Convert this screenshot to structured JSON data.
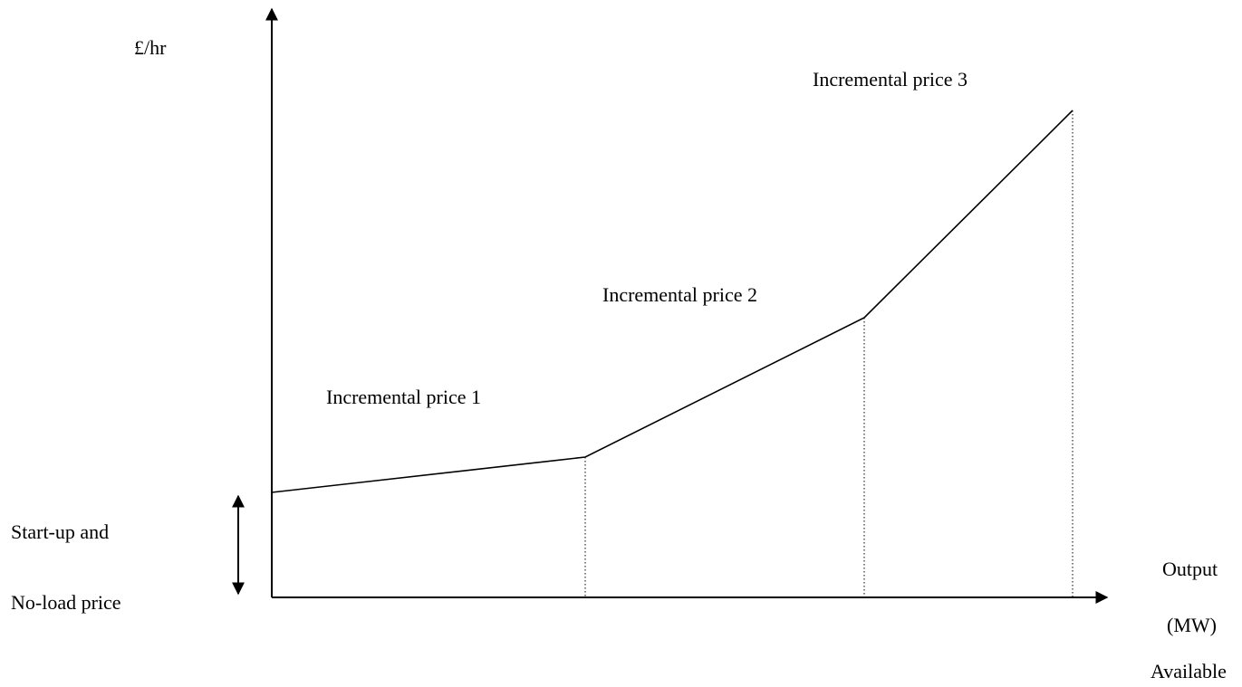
{
  "y_axis_label": "£/hr",
  "segments": [
    {
      "label": "Incremental price 1"
    },
    {
      "label": "Incremental price 2"
    },
    {
      "label": "Incremental price 3"
    }
  ],
  "start_up_label": [
    "Start-up and",
    "No-load price"
  ],
  "x_axis_label": [
    "Output",
    "(MW)"
  ],
  "available_label": "Available"
}
